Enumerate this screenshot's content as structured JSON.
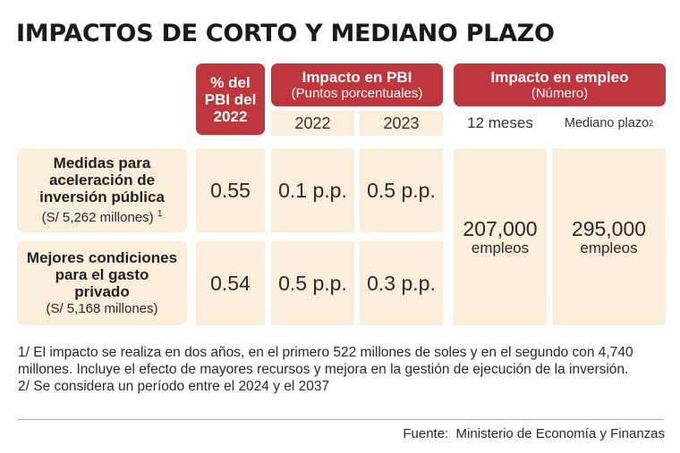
{
  "title": "IMPACTOS DE CORTO Y MEDIANO PLAZO",
  "header": {
    "pbi_share": {
      "line1": "% del",
      "line2": "PBI del",
      "line3": "2022"
    },
    "impacto_pbi": {
      "title": "Impacto en PBI",
      "subtitle": "(Puntos porcentuales)",
      "years": [
        "2022",
        "2023"
      ]
    },
    "impacto_empleo": {
      "title": "Impacto en empleo",
      "subtitle": "(Número)",
      "col1": "12 meses",
      "col2": "Mediano plazo",
      "col2_note": "2"
    }
  },
  "rows": [
    {
      "label_line1": "Medidas para",
      "label_line2": "aceleración de",
      "label_line3": "inversión pública",
      "amount": "(S/ 5,262 millones)",
      "amount_note": "1",
      "pbi_share": "0.55",
      "pbi_2022": "0.1 p.p.",
      "pbi_2023": "0.5 p.p."
    },
    {
      "label_line1": "Mejores condiciones",
      "label_line2": "para el gasto",
      "label_line3": "privado",
      "amount": "(S/ 5,168 millones)",
      "amount_note": "",
      "pbi_share": "0.54",
      "pbi_2022": "0.5 p.p.",
      "pbi_2023": "0.3 p.p."
    }
  ],
  "employment": {
    "short_value": "207,000",
    "short_unit": "empleos",
    "medium_value": "295,000",
    "medium_unit": "empleos"
  },
  "notes": {
    "note1": "1/ El impacto se realiza en dos años, en el primero 522 millones de soles y en el segundo con 4,740 millones. Incluye el efecto de mayores recursos y mejora en la gestión de ejecución de la inversión.",
    "note2": "2/ Se considera un período entre el 2024 y el 2037"
  },
  "source": "Fuente:  Ministerio de Economía y Finanzas",
  "colors": {
    "red": "#c0363d",
    "cream": "#fbeedb"
  }
}
